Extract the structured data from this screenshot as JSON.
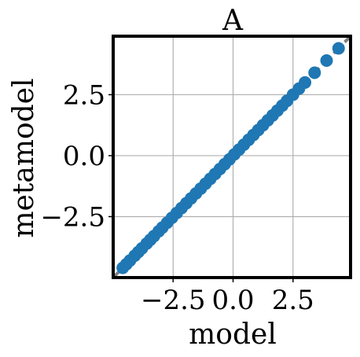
{
  "chart_data": {
    "type": "scatter",
    "title": "A",
    "xlabel": "model",
    "ylabel": "metamodel",
    "xlim": [
      -5.0,
      4.9
    ],
    "ylim": [
      -5.0,
      4.9
    ],
    "xticks": [
      -2.5,
      0.0,
      2.5
    ],
    "yticks": [
      -2.5,
      0.0,
      2.5
    ],
    "xtick_labels": [
      "−2.5",
      "0.0",
      "2.5"
    ],
    "ytick_labels": [
      "−2.5",
      "0.0",
      "2.5"
    ],
    "grid": true,
    "reference_line": "identity (y = x)",
    "colors": {
      "points": "#1f77b4",
      "reference_line": "#808080",
      "grid": "#b0b0b0",
      "frame": "#000000"
    },
    "points": [
      [
        -4.6,
        -4.6
      ],
      [
        -4.45,
        -4.45
      ],
      [
        -4.3,
        -4.3
      ],
      [
        -4.1,
        -4.1
      ],
      [
        -3.95,
        -3.95
      ],
      [
        -3.8,
        -3.8
      ],
      [
        -3.6,
        -3.6
      ],
      [
        -3.45,
        -3.45
      ],
      [
        -3.3,
        -3.3
      ],
      [
        -3.1,
        -3.1
      ],
      [
        -2.95,
        -2.95
      ],
      [
        -2.75,
        -2.75
      ],
      [
        -2.55,
        -2.55
      ],
      [
        -2.35,
        -2.35
      ],
      [
        -2.15,
        -2.15
      ],
      [
        -1.95,
        -1.95
      ],
      [
        -1.75,
        -1.75
      ],
      [
        -1.55,
        -1.55
      ],
      [
        -1.35,
        -1.35
      ],
      [
        -1.15,
        -1.15
      ],
      [
        -0.95,
        -0.95
      ],
      [
        -0.75,
        -0.75
      ],
      [
        -0.55,
        -0.55
      ],
      [
        -0.35,
        -0.35
      ],
      [
        -0.15,
        -0.15
      ],
      [
        0.05,
        0.05
      ],
      [
        0.25,
        0.25
      ],
      [
        0.45,
        0.45
      ],
      [
        0.65,
        0.65
      ],
      [
        0.85,
        0.85
      ],
      [
        1.05,
        1.05
      ],
      [
        1.25,
        1.25
      ],
      [
        1.45,
        1.45
      ],
      [
        1.65,
        1.65
      ],
      [
        1.85,
        1.85
      ],
      [
        2.05,
        2.05
      ],
      [
        2.25,
        2.25
      ],
      [
        2.5,
        2.5
      ],
      [
        2.75,
        2.75
      ],
      [
        3.0,
        3.0
      ],
      [
        3.4,
        3.4
      ],
      [
        3.9,
        3.9
      ],
      [
        4.4,
        4.4
      ]
    ]
  }
}
